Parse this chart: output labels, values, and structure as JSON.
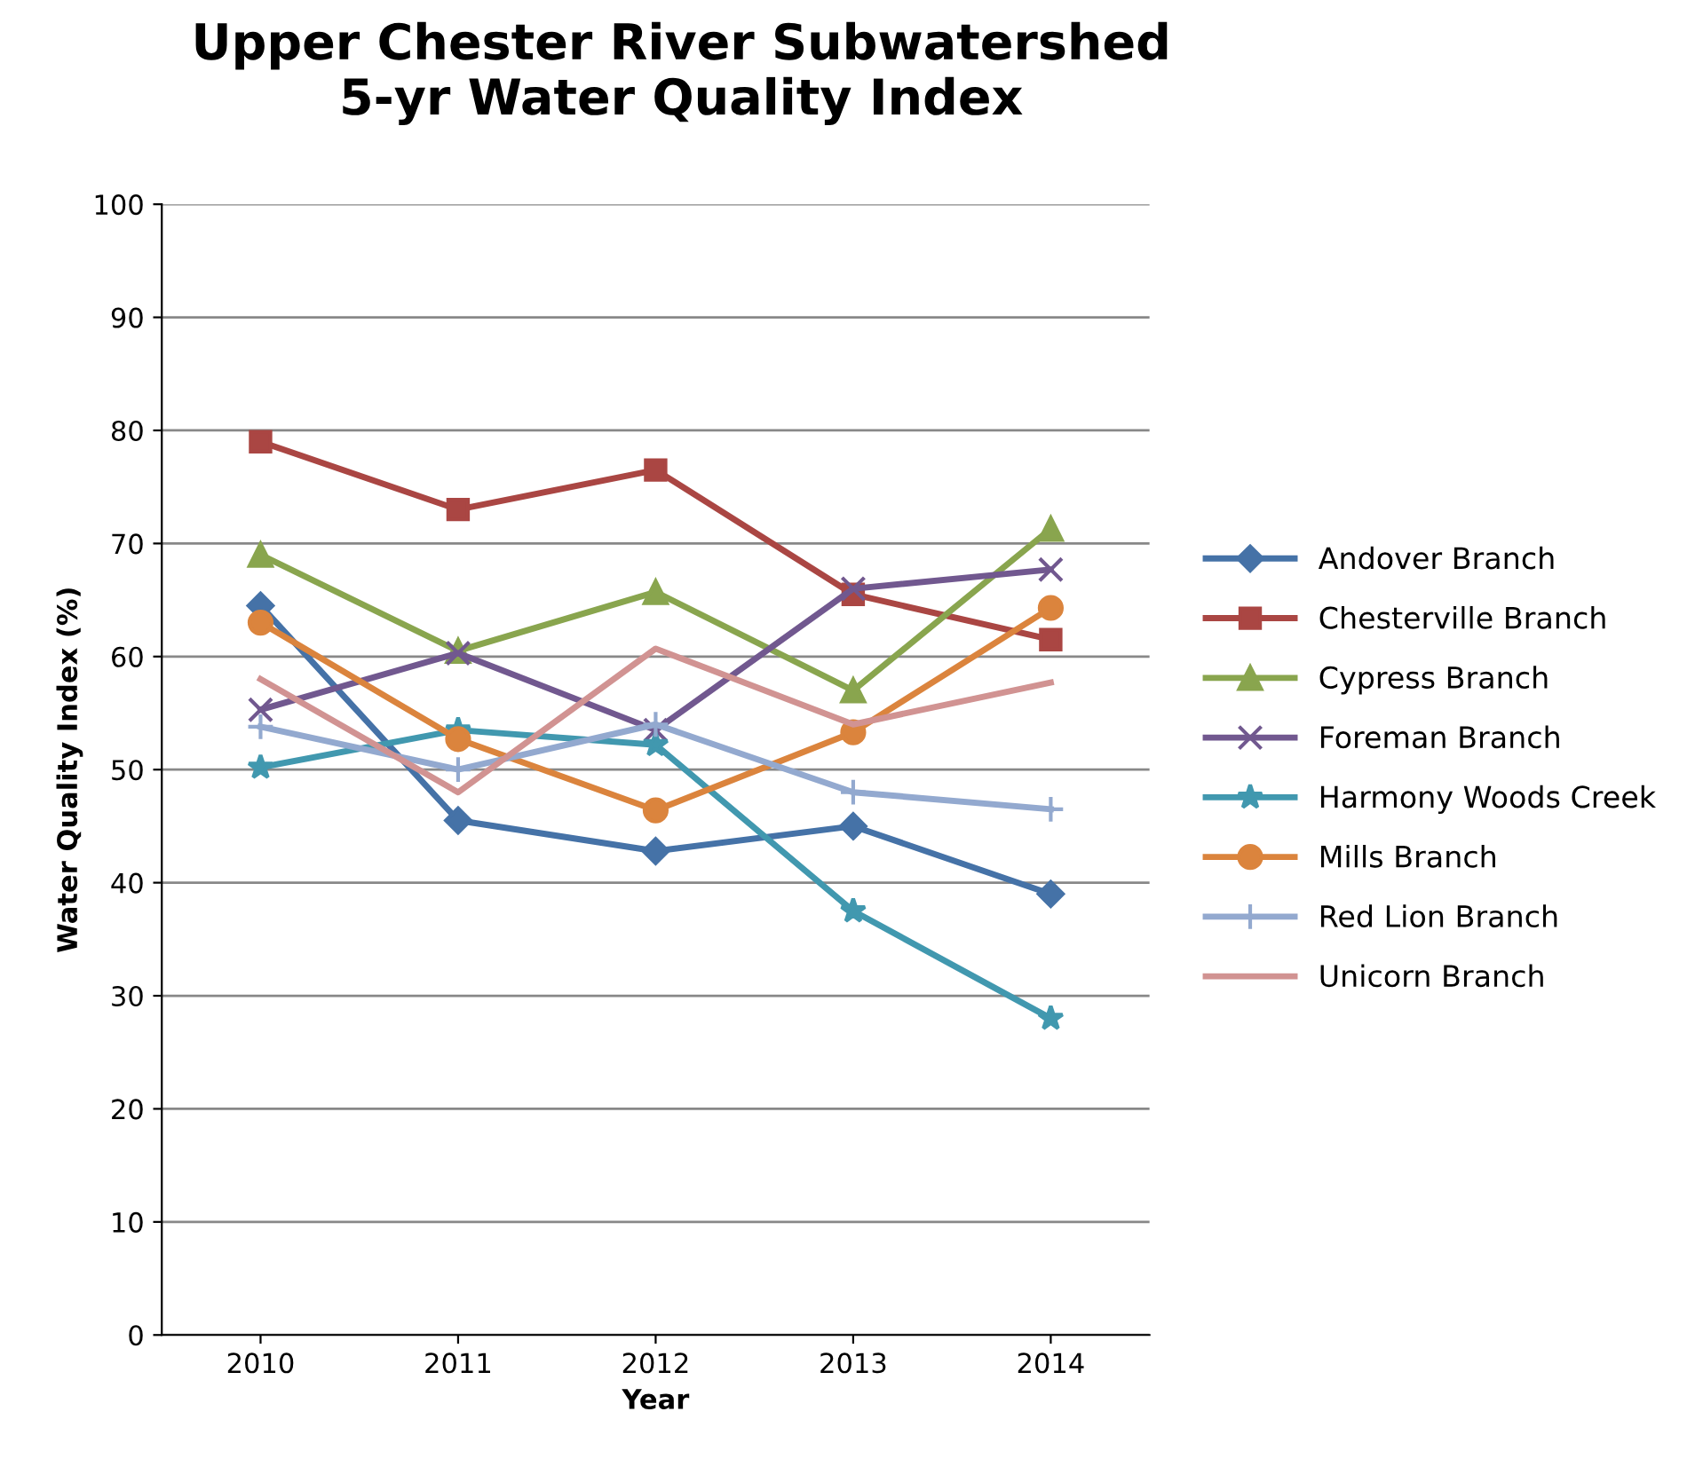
{
  "chart_data": {
    "type": "line",
    "title": "Upper Chester River Subwatershed\n5-yr Water Quality Index",
    "xlabel": "Year",
    "ylabel": "Water Quality Index (%)",
    "categories": [
      "2010",
      "2011",
      "2012",
      "2013",
      "2014"
    ],
    "ylim": [
      0,
      100
    ],
    "yticks": [
      0,
      10,
      20,
      30,
      40,
      50,
      60,
      70,
      80,
      90,
      100
    ],
    "grid": "y",
    "legend": "right",
    "series": [
      {
        "name": "Andover Branch",
        "color": "#4572a7",
        "marker": "diamond",
        "values": [
          64.5,
          45.5,
          42.8,
          45,
          39
        ]
      },
      {
        "name": "Chesterville Branch",
        "color": "#aa4643",
        "marker": "square",
        "values": [
          79,
          73,
          76.5,
          65.5,
          61.5
        ]
      },
      {
        "name": "Cypress Branch",
        "color": "#89a54e",
        "marker": "triangle",
        "values": [
          69,
          60.5,
          65.7,
          57,
          71.3
        ]
      },
      {
        "name": "Foreman Branch",
        "color": "#71588f",
        "marker": "cross",
        "values": [
          55.3,
          60.3,
          53.5,
          66,
          67.7
        ]
      },
      {
        "name": "Harmony Woods Creek",
        "color": "#4198af",
        "marker": "star",
        "values": [
          50.2,
          53.5,
          52.2,
          37.5,
          28
        ]
      },
      {
        "name": "Mills Branch",
        "color": "#db843d",
        "marker": "circle",
        "values": [
          63,
          52.7,
          46.4,
          53.3,
          64.3
        ]
      },
      {
        "name": "Red Lion Branch",
        "color": "#93a9cf",
        "marker": "plus",
        "values": [
          53.8,
          50,
          54,
          48,
          46.5
        ]
      },
      {
        "name": "Unicorn Branch",
        "color": "#d19392",
        "marker": "none",
        "values": [
          58,
          48,
          60.7,
          54,
          57.7
        ]
      }
    ]
  }
}
